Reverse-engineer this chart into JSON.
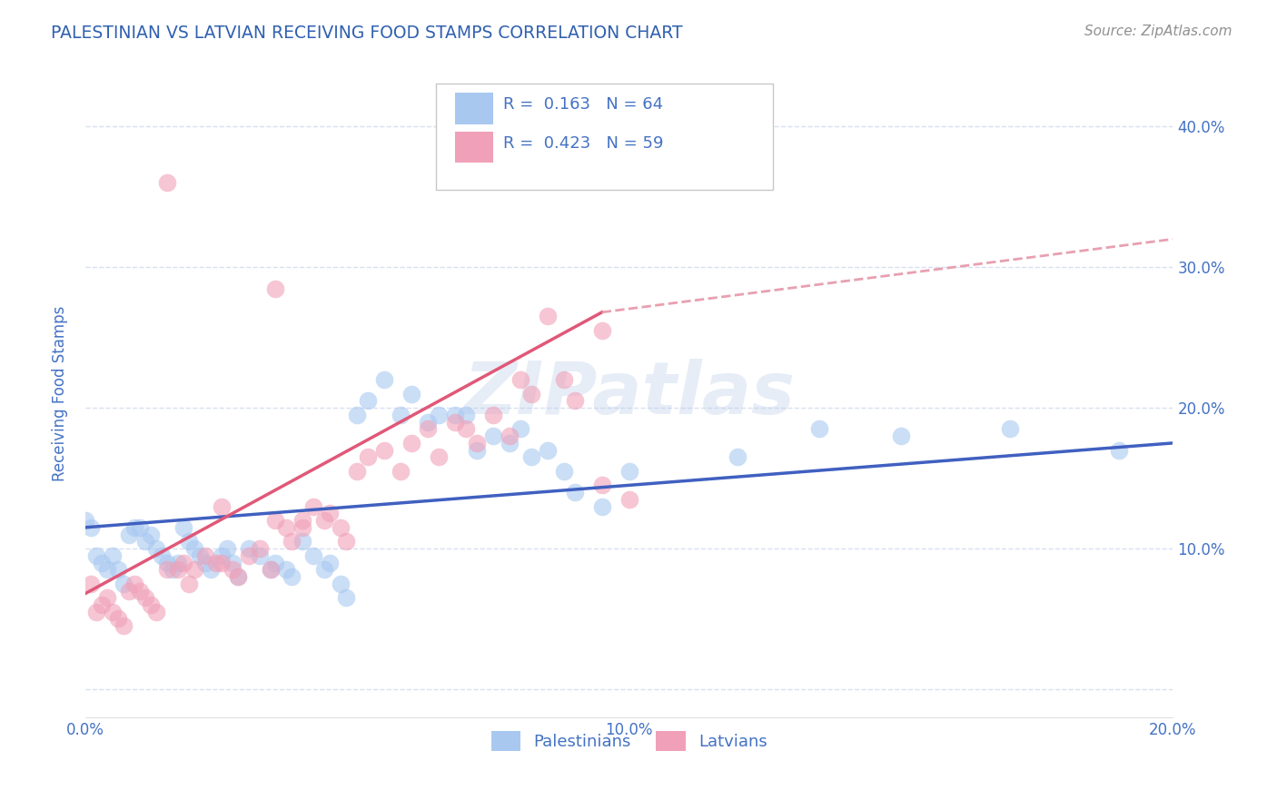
{
  "title": "PALESTINIAN VS LATVIAN RECEIVING FOOD STAMPS CORRELATION CHART",
  "source": "Source: ZipAtlas.com",
  "ylabel": "Receiving Food Stamps",
  "watermark": "ZIPatlas",
  "legend_r1": "R =  0.163   N = 64",
  "legend_r2": "R =  0.423   N = 59",
  "legend_label1": "Palestinians",
  "legend_label2": "Latvians",
  "xlim": [
    0.0,
    0.2
  ],
  "ylim": [
    -0.02,
    0.44
  ],
  "x_ticks": [
    0.0,
    0.05,
    0.1,
    0.15,
    0.2
  ],
  "x_tick_labels": [
    "0.0%",
    "",
    "10.0%",
    "",
    "20.0%"
  ],
  "y_ticks": [
    0.0,
    0.1,
    0.2,
    0.3,
    0.4
  ],
  "y_tick_labels_right": [
    "",
    "10.0%",
    "20.0%",
    "30.0%",
    "40.0%"
  ],
  "color_blue": "#a8c8f0",
  "color_pink": "#f0a0b8",
  "line_blue": "#4060c0",
  "line_pink": "#e05878",
  "line_dashed_color": "#e8a0b0",
  "title_color": "#3060b0",
  "source_color": "#909090",
  "tick_color": "#4472c4",
  "grid_color": "#d8e0f0",
  "blue_points_x": [
    0.001,
    0.002,
    0.003,
    0.004,
    0.005,
    0.006,
    0.007,
    0.008,
    0.009,
    0.01,
    0.011,
    0.012,
    0.013,
    0.014,
    0.015,
    0.016,
    0.017,
    0.018,
    0.019,
    0.02,
    0.021,
    0.022,
    0.023,
    0.025,
    0.026,
    0.027,
    0.028,
    0.03,
    0.032,
    0.034,
    0.035,
    0.037,
    0.038,
    0.04,
    0.042,
    0.044,
    0.045,
    0.047,
    0.048,
    0.05,
    0.052,
    0.055,
    0.058,
    0.06,
    0.063,
    0.065,
    0.068,
    0.07,
    0.072,
    0.075,
    0.078,
    0.08,
    0.082,
    0.085,
    0.088,
    0.09,
    0.095,
    0.1,
    0.12,
    0.135,
    0.15,
    0.17,
    0.19,
    0.0
  ],
  "blue_points_y": [
    0.115,
    0.095,
    0.09,
    0.085,
    0.095,
    0.085,
    0.075,
    0.11,
    0.115,
    0.115,
    0.105,
    0.11,
    0.1,
    0.095,
    0.09,
    0.085,
    0.09,
    0.115,
    0.105,
    0.1,
    0.095,
    0.09,
    0.085,
    0.095,
    0.1,
    0.09,
    0.08,
    0.1,
    0.095,
    0.085,
    0.09,
    0.085,
    0.08,
    0.105,
    0.095,
    0.085,
    0.09,
    0.075,
    0.065,
    0.195,
    0.205,
    0.22,
    0.195,
    0.21,
    0.19,
    0.195,
    0.195,
    0.195,
    0.17,
    0.18,
    0.175,
    0.185,
    0.165,
    0.17,
    0.155,
    0.14,
    0.13,
    0.155,
    0.165,
    0.185,
    0.18,
    0.185,
    0.17,
    0.12
  ],
  "pink_points_x": [
    0.001,
    0.002,
    0.003,
    0.004,
    0.005,
    0.006,
    0.007,
    0.008,
    0.009,
    0.01,
    0.011,
    0.012,
    0.013,
    0.015,
    0.017,
    0.018,
    0.019,
    0.02,
    0.022,
    0.024,
    0.025,
    0.027,
    0.028,
    0.03,
    0.032,
    0.034,
    0.035,
    0.037,
    0.038,
    0.04,
    0.042,
    0.044,
    0.045,
    0.047,
    0.048,
    0.05,
    0.052,
    0.055,
    0.058,
    0.06,
    0.063,
    0.065,
    0.068,
    0.07,
    0.072,
    0.075,
    0.078,
    0.08,
    0.082,
    0.085,
    0.088,
    0.09,
    0.095,
    0.1,
    0.015,
    0.025,
    0.035,
    0.04,
    0.095
  ],
  "pink_points_y": [
    0.075,
    0.055,
    0.06,
    0.065,
    0.055,
    0.05,
    0.045,
    0.07,
    0.075,
    0.07,
    0.065,
    0.06,
    0.055,
    0.085,
    0.085,
    0.09,
    0.075,
    0.085,
    0.095,
    0.09,
    0.09,
    0.085,
    0.08,
    0.095,
    0.1,
    0.085,
    0.12,
    0.115,
    0.105,
    0.12,
    0.13,
    0.12,
    0.125,
    0.115,
    0.105,
    0.155,
    0.165,
    0.17,
    0.155,
    0.175,
    0.185,
    0.165,
    0.19,
    0.185,
    0.175,
    0.195,
    0.18,
    0.22,
    0.21,
    0.265,
    0.22,
    0.205,
    0.145,
    0.135,
    0.36,
    0.13,
    0.285,
    0.115,
    0.255
  ],
  "blue_trend_x": [
    0.0,
    0.2
  ],
  "blue_trend_y": [
    0.115,
    0.175
  ],
  "pink_trend_x": [
    0.0,
    0.095
  ],
  "pink_trend_y": [
    0.068,
    0.268
  ],
  "dashed_trend_x": [
    0.095,
    0.2
  ],
  "dashed_trend_y": [
    0.268,
    0.32
  ]
}
